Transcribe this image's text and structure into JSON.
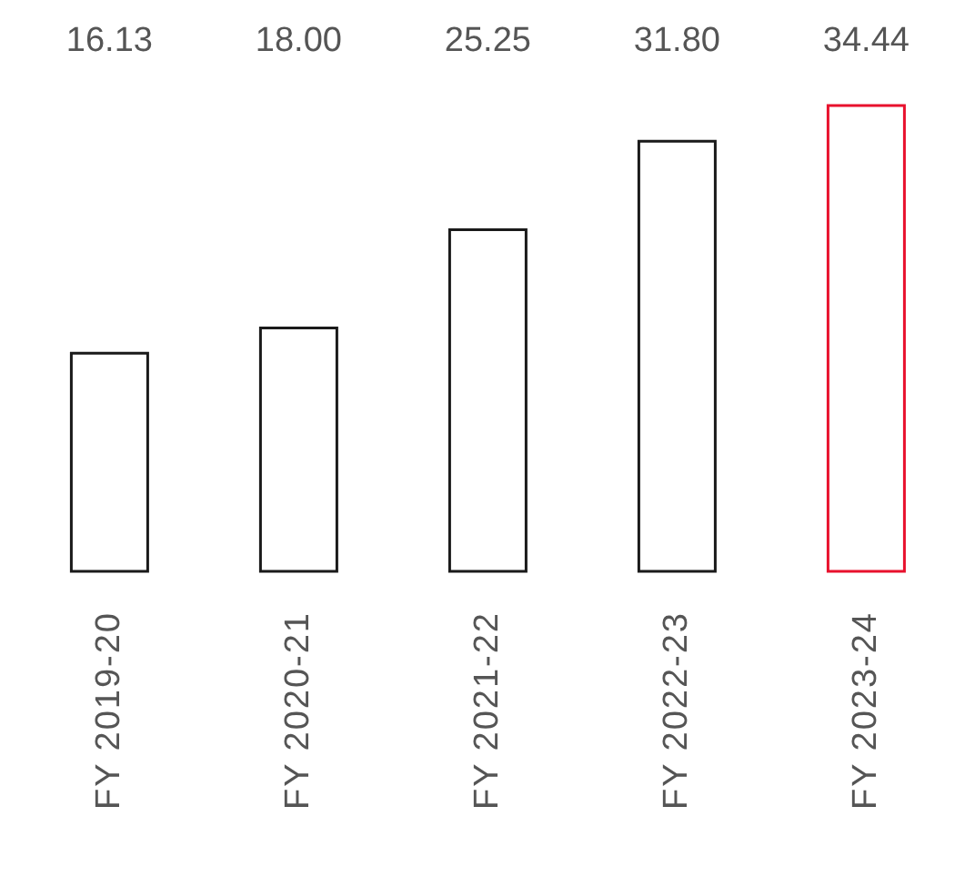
{
  "chart_data": {
    "type": "bar",
    "categories": [
      "FY 2019-20",
      "FY 2020-21",
      "FY 2021-22",
      "FY 2022-23",
      "FY 2023-24"
    ],
    "values": [
      16.13,
      18.0,
      25.25,
      31.8,
      34.44
    ],
    "colors": [
      "#1a1a1a",
      "#1a1a1a",
      "#1a1a1a",
      "#1a1a1a",
      "#e8112d"
    ],
    "value_labels": [
      "16.13",
      "18.00",
      "25.25",
      "31.80",
      "34.44"
    ],
    "grid": false,
    "legend": false
  }
}
